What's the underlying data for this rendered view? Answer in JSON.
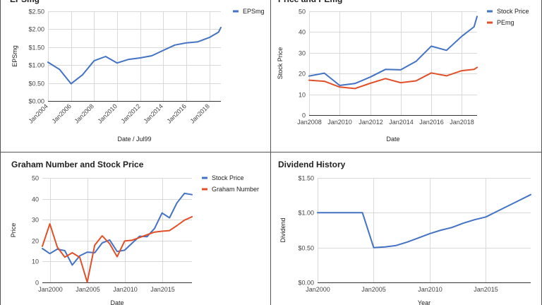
{
  "chart_data": [
    {
      "type": "line",
      "title": "EPSmg",
      "xlabel": "Date / Jul99",
      "ylabel": "EPSmg",
      "x_ticks": [
        2004,
        2006,
        2008,
        2010,
        2012,
        2014,
        2016,
        2018
      ],
      "x_tick_labels": [
        "Jan2004",
        "Jan2006",
        "Jan2008",
        "Jan2010",
        "Jan2012",
        "Jan2014",
        "Jan2016",
        "Jan2018"
      ],
      "y_ticks": [
        0,
        0.5,
        1,
        1.5,
        2,
        2.5
      ],
      "y_tick_labels": [
        "$0.00",
        "$0.50",
        "$1.00",
        "$1.50",
        "$2.00",
        "$2.50"
      ],
      "xlim": [
        2004,
        2019
      ],
      "ylim": [
        0,
        2.5
      ],
      "grid": true,
      "legend_position": "top-right",
      "series": [
        {
          "name": "EPSmg",
          "color": "#4472c4",
          "x": [
            2004,
            2005,
            2006,
            2007,
            2008,
            2009,
            2010,
            2011,
            2012,
            2013,
            2014,
            2015,
            2016,
            2017,
            2018,
            2018.8,
            2019
          ],
          "values": [
            1.08,
            0.88,
            0.48,
            0.73,
            1.12,
            1.24,
            1.06,
            1.16,
            1.2,
            1.26,
            1.41,
            1.56,
            1.62,
            1.65,
            1.77,
            1.92,
            2.05
          ]
        }
      ]
    },
    {
      "type": "line",
      "title": "Price and PEmg",
      "xlabel": "Date",
      "ylabel": "Stock Price",
      "x_ticks": [
        2008,
        2010,
        2012,
        2014,
        2016,
        2018
      ],
      "x_tick_labels": [
        "Jan2008",
        "Jan2010",
        "Jan2012",
        "Jan2014",
        "Jan2016",
        "Jan2018"
      ],
      "y_ticks": [
        0,
        10,
        20,
        30,
        40,
        50
      ],
      "y_tick_labels": [
        "0",
        "10",
        "20",
        "30",
        "40",
        "50"
      ],
      "xlim": [
        2008,
        2019
      ],
      "ylim": [
        0,
        50
      ],
      "grid": true,
      "legend_position": "top-right",
      "series": [
        {
          "name": "Stock Price",
          "color": "#4472c4",
          "x": [
            2008,
            2009,
            2010,
            2011,
            2012,
            2013,
            2014,
            2015,
            2016,
            2017,
            2018,
            2018.8,
            2019
          ],
          "values": [
            18.8,
            20.2,
            14.3,
            15.2,
            18.3,
            22.0,
            21.8,
            25.9,
            33.2,
            31.2,
            38.0,
            42.5,
            47.5
          ]
        },
        {
          "name": "PEmg",
          "color": "#e15028",
          "x": [
            2008,
            2009,
            2010,
            2011,
            2012,
            2013,
            2014,
            2015,
            2016,
            2017,
            2018,
            2018.8,
            2019
          ],
          "values": [
            16.8,
            16.3,
            13.5,
            12.8,
            15.3,
            17.6,
            15.6,
            16.5,
            20.3,
            18.9,
            21.4,
            22.0,
            23.0
          ]
        }
      ]
    },
    {
      "type": "line",
      "title": "Graham Number and Stock Price",
      "xlabel": "Date",
      "ylabel": "Price",
      "x_ticks": [
        2000,
        2005,
        2010,
        2015
      ],
      "x_tick_labels": [
        "Jan2000",
        "Jan2005",
        "Jan2010",
        "Jan2015"
      ],
      "y_ticks": [
        0,
        10,
        20,
        30,
        40,
        50
      ],
      "y_tick_labels": [
        "0",
        "10",
        "20",
        "30",
        "40",
        "50"
      ],
      "xlim": [
        1999,
        2019
      ],
      "ylim": [
        0,
        50
      ],
      "grid": true,
      "legend_position": "top-right",
      "series": [
        {
          "name": "Stock Price",
          "color": "#4472c4",
          "x": [
            1999,
            2000,
            2001,
            2002,
            2003,
            2004,
            2005,
            2006,
            2007,
            2008,
            2009,
            2010,
            2011,
            2012,
            2013,
            2014,
            2015,
            2016,
            2017,
            2018,
            2019
          ],
          "values": [
            16.2,
            13.8,
            15.9,
            15.2,
            8.3,
            12.7,
            14.5,
            14.2,
            18.9,
            20.3,
            14.8,
            15.4,
            18.8,
            22.1,
            21.9,
            25.8,
            33.2,
            30.9,
            38.1,
            42.6,
            42.0
          ]
        },
        {
          "name": "Graham Number",
          "color": "#e15028",
          "x": [
            1999,
            2000,
            2001,
            2002,
            2003,
            2004,
            2005,
            2006,
            2007,
            2008,
            2009,
            2010,
            2011,
            2012,
            2013,
            2014,
            2015,
            2016,
            2017,
            2018,
            2019
          ],
          "values": [
            17.3,
            28.0,
            16.9,
            12.1,
            14.2,
            12.0,
            0.1,
            17.8,
            22.3,
            18.5,
            12.3,
            19.8,
            20.2,
            21.5,
            22.8,
            24.1,
            24.5,
            24.8,
            27.2,
            29.8,
            31.4
          ]
        }
      ]
    },
    {
      "type": "line",
      "title": "Dividend History",
      "xlabel": "Year",
      "ylabel": "Dividend",
      "x_ticks": [
        2000,
        2005,
        2010,
        2015
      ],
      "x_tick_labels": [
        "Jan2000",
        "Jan2005",
        "Jan2010",
        "Jan2015"
      ],
      "y_ticks": [
        0,
        0.5,
        1,
        1.5
      ],
      "y_tick_labels": [
        "$0.00",
        "$0.50",
        "$1.00",
        "$1.50"
      ],
      "xlim": [
        2000,
        2019
      ],
      "ylim": [
        0,
        1.5
      ],
      "grid": true,
      "legend_position": "none",
      "series": [
        {
          "name": "Dividend",
          "color": "#4472c4",
          "x": [
            2000,
            2001,
            2002,
            2003,
            2004,
            2005,
            2006,
            2007,
            2008,
            2009,
            2010,
            2011,
            2012,
            2013,
            2014,
            2015,
            2016,
            2017,
            2018,
            2019
          ],
          "values": [
            1.0,
            1.0,
            1.0,
            1.0,
            1.0,
            0.5,
            0.51,
            0.53,
            0.58,
            0.64,
            0.7,
            0.75,
            0.79,
            0.85,
            0.9,
            0.94,
            1.02,
            1.1,
            1.18,
            1.26
          ]
        }
      ]
    }
  ]
}
